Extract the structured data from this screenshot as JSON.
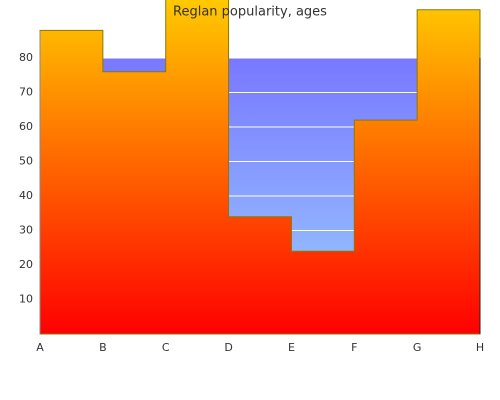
{
  "chart_data": {
    "type": "step-area",
    "title": "Reglan popularity, ages",
    "categories": [
      "A",
      "B",
      "C",
      "D",
      "E",
      "F",
      "G",
      "H"
    ],
    "series": [
      {
        "gradient": [
          "#7878ff",
          "#9ccfff"
        ],
        "values": [
          80,
          80,
          80,
          80,
          80,
          80,
          80,
          80
        ]
      },
      {
        "gradient": [
          "#ffd000",
          "#ff0000"
        ],
        "line_color": "#8a7a00",
        "values": [
          88,
          76,
          100,
          34,
          24,
          62,
          94,
          94
        ]
      }
    ],
    "ylim": [
      0,
      100
    ],
    "yticks": [
      10,
      20,
      30,
      40,
      50,
      60,
      70,
      80
    ],
    "grid": true,
    "grid_color": "#ffffff"
  }
}
